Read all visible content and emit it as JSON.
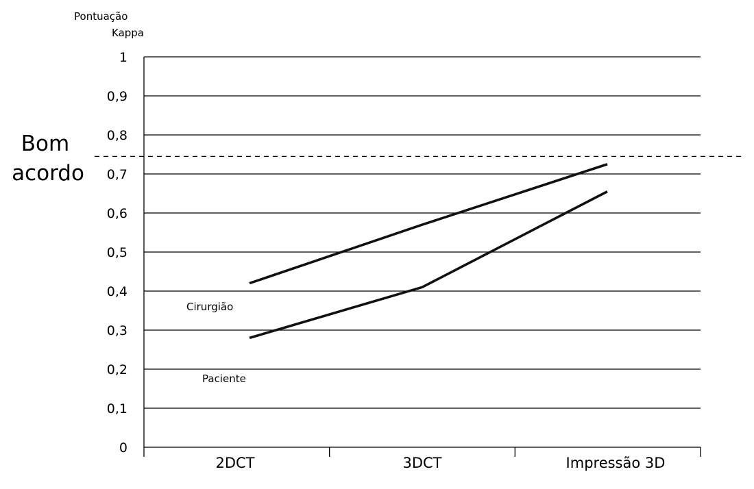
{
  "chart_data": {
    "type": "line",
    "ylabel_lines": [
      "Pontuação",
      "Kappa"
    ],
    "xlabel": "",
    "categories": [
      "2DCT",
      "3DCT",
      "Impressão 3D"
    ],
    "ylim": [
      0,
      1
    ],
    "yticks": [
      0,
      0.1,
      0.2,
      0.3,
      0.4,
      0.5,
      0.6,
      0.7,
      0.8,
      0.9,
      1
    ],
    "ytick_labels": [
      "0",
      "0,1",
      "0,2",
      "0,3",
      "0,4",
      "0,5",
      "0,6",
      "0,7",
      "0,8",
      "0,9",
      "1"
    ],
    "grid": true,
    "legend": "none",
    "series": [
      {
        "name": "Cirurgião",
        "values": [
          0.42,
          0.57,
          0.725
        ],
        "color": "#111111"
      },
      {
        "name": "Paciente",
        "values": [
          0.28,
          0.41,
          0.655
        ],
        "color": "#111111"
      }
    ],
    "reference_line": {
      "value": 0.745,
      "style": "dashed",
      "label_lines": [
        "Bom",
        "acordo"
      ]
    }
  }
}
